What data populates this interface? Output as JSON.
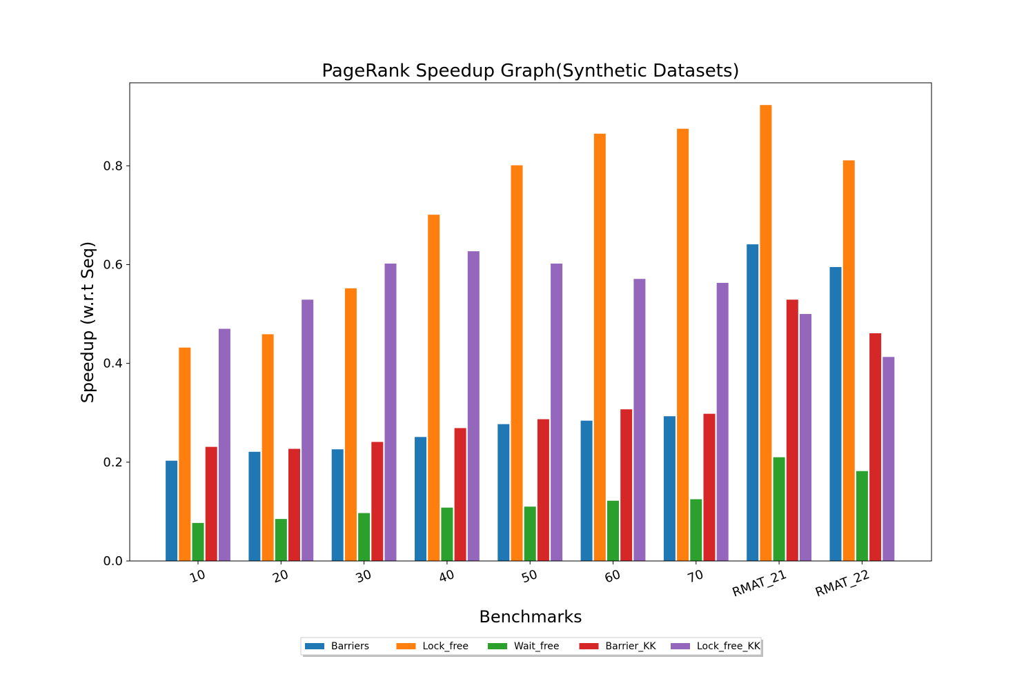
{
  "chart_data": {
    "type": "bar",
    "title": "PageRank Speedup Graph(Synthetic Datasets)",
    "xlabel": "Benchmarks",
    "ylabel": "Speedup (w.r.t Seq)",
    "categories": [
      "10",
      "20",
      "30",
      "40",
      "50",
      "60",
      "70",
      "RMAT_21",
      "RMAT_22"
    ],
    "ylim": [
      0,
      0.968
    ],
    "yticks": [
      0.0,
      0.2,
      0.4,
      0.6,
      0.8
    ],
    "ytick_labels": [
      "0.0",
      "0.2",
      "0.4",
      "0.6",
      "0.8"
    ],
    "grid": false,
    "legend_position": "bottom-center",
    "series": [
      {
        "name": "Barriers",
        "color": "#1f77b4",
        "values": [
          0.203,
          0.221,
          0.226,
          0.251,
          0.277,
          0.284,
          0.293,
          0.641,
          0.595
        ]
      },
      {
        "name": "Lock_free",
        "color": "#ff7f0e",
        "values": [
          0.432,
          0.459,
          0.552,
          0.701,
          0.801,
          0.865,
          0.875,
          0.923,
          0.811
        ]
      },
      {
        "name": "Wait_free",
        "color": "#2ca02c",
        "values": [
          0.077,
          0.085,
          0.097,
          0.108,
          0.11,
          0.122,
          0.125,
          0.21,
          0.182
        ]
      },
      {
        "name": "Barrier_KK",
        "color": "#d62728",
        "values": [
          0.231,
          0.227,
          0.241,
          0.269,
          0.287,
          0.307,
          0.298,
          0.529,
          0.461
        ]
      },
      {
        "name": "Lock_free_KK",
        "color": "#9467bd",
        "values": [
          0.47,
          0.529,
          0.602,
          0.627,
          0.602,
          0.571,
          0.563,
          0.5,
          0.413
        ]
      }
    ]
  }
}
